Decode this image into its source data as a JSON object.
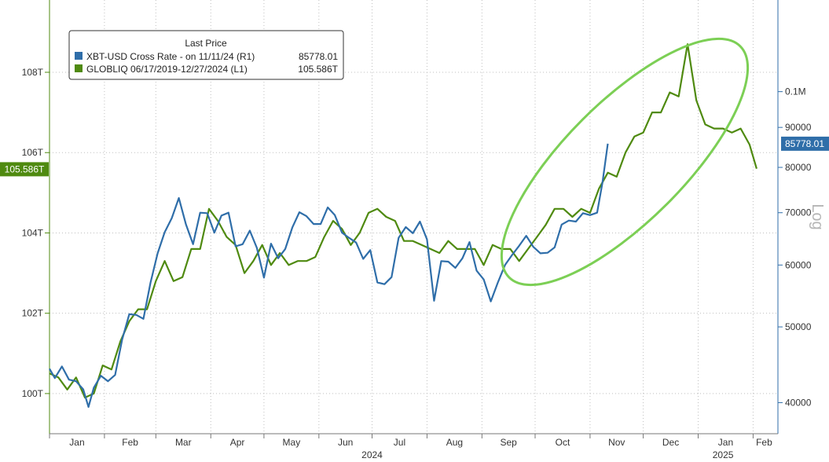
{
  "chart_data": {
    "type": "line",
    "legend": {
      "title": "Last Price",
      "placement": "top-left",
      "entries": [
        {
          "label": "XBT-USD Cross Rate -  on 11/11/24  (R1)",
          "value": "85778.01",
          "color": "#2f6ea9"
        },
        {
          "label": "GLOBLIQ 06/17/2019-12/27/2024  (L1)",
          "value": "105.586T",
          "color": "#4f8a10"
        }
      ]
    },
    "x_axis": {
      "months": [
        {
          "label": "Jan",
          "date": "2024-01-01"
        },
        {
          "label": "Feb",
          "date": "2024-02-01"
        },
        {
          "label": "Mar",
          "date": "2024-03-01"
        },
        {
          "label": "Apr",
          "date": "2024-04-01"
        },
        {
          "label": "May",
          "date": "2024-05-01"
        },
        {
          "label": "Jun",
          "date": "2024-06-01"
        },
        {
          "label": "Jul",
          "date": "2024-07-01"
        },
        {
          "label": "Aug",
          "date": "2024-08-01"
        },
        {
          "label": "Sep",
          "date": "2024-09-01"
        },
        {
          "label": "Oct",
          "date": "2024-10-01"
        },
        {
          "label": "Nov",
          "date": "2024-11-01"
        },
        {
          "label": "Dec",
          "date": "2024-12-01"
        },
        {
          "label": "Jan",
          "date": "2025-01-01"
        },
        {
          "label": "Feb",
          "date": "2025-02-01"
        }
      ],
      "years": [
        {
          "label": "2024",
          "date": "2024-07-01"
        },
        {
          "label": "2025",
          "date": "2025-01-15"
        }
      ],
      "range": [
        "2024-01-01",
        "2025-02-15"
      ]
    },
    "y_left": {
      "ticks": [
        {
          "label": "100T",
          "value": 100
        },
        {
          "label": "102T",
          "value": 102
        },
        {
          "label": "104T",
          "value": 104
        },
        {
          "label": "106T",
          "value": 106
        },
        {
          "label": "108T",
          "value": 108
        }
      ],
      "range": [
        99,
        109.8
      ],
      "last_value_label": "105.586T",
      "last_value": 105.586
    },
    "y_right": {
      "scale": "log",
      "axis_label": "Log",
      "ticks": [
        {
          "label": "40000",
          "value": 40000
        },
        {
          "label": "50000",
          "value": 50000
        },
        {
          "label": "60000",
          "value": 60000
        },
        {
          "label": "70000",
          "value": 70000
        },
        {
          "label": "80000",
          "value": 80000
        },
        {
          "label": "90000",
          "value": 90000
        },
        {
          "label": "0.1M",
          "value": 100000
        }
      ],
      "range": [
        36500,
        131000
      ],
      "last_value_label": "85778.01",
      "last_value": 85778.01
    },
    "grid": true,
    "series": [
      {
        "name": "GLOBLIQ 06/17/2019-12/27/2024",
        "axis": "left",
        "color": "#4f8a10",
        "points": [
          [
            "2024-01-01",
            100.5
          ],
          [
            "2024-01-06",
            100.4
          ],
          [
            "2024-01-11",
            100.1
          ],
          [
            "2024-01-16",
            100.4
          ],
          [
            "2024-01-21",
            99.9
          ],
          [
            "2024-01-26",
            100.0
          ],
          [
            "2024-01-31",
            100.7
          ],
          [
            "2024-02-05",
            100.6
          ],
          [
            "2024-02-10",
            101.3
          ],
          [
            "2024-02-15",
            101.8
          ],
          [
            "2024-02-20",
            102.1
          ],
          [
            "2024-02-25",
            102.1
          ],
          [
            "2024-03-01",
            102.8
          ],
          [
            "2024-03-06",
            103.3
          ],
          [
            "2024-03-11",
            102.8
          ],
          [
            "2024-03-16",
            102.9
          ],
          [
            "2024-03-21",
            103.6
          ],
          [
            "2024-03-26",
            103.6
          ],
          [
            "2024-03-31",
            104.6
          ],
          [
            "2024-04-05",
            104.3
          ],
          [
            "2024-04-10",
            103.9
          ],
          [
            "2024-04-15",
            103.7
          ],
          [
            "2024-04-20",
            103.0
          ],
          [
            "2024-04-25",
            103.3
          ],
          [
            "2024-04-30",
            103.7
          ],
          [
            "2024-05-05",
            103.2
          ],
          [
            "2024-05-10",
            103.5
          ],
          [
            "2024-05-15",
            103.2
          ],
          [
            "2024-05-20",
            103.3
          ],
          [
            "2024-05-25",
            103.3
          ],
          [
            "2024-05-30",
            103.4
          ],
          [
            "2024-06-04",
            103.9
          ],
          [
            "2024-06-09",
            104.3
          ],
          [
            "2024-06-14",
            104.1
          ],
          [
            "2024-06-19",
            103.7
          ],
          [
            "2024-06-24",
            104.0
          ],
          [
            "2024-06-29",
            104.5
          ],
          [
            "2024-07-04",
            104.6
          ],
          [
            "2024-07-09",
            104.4
          ],
          [
            "2024-07-14",
            104.3
          ],
          [
            "2024-07-19",
            103.8
          ],
          [
            "2024-07-24",
            103.8
          ],
          [
            "2024-07-29",
            103.7
          ],
          [
            "2024-08-03",
            103.6
          ],
          [
            "2024-08-08",
            103.5
          ],
          [
            "2024-08-13",
            103.8
          ],
          [
            "2024-08-18",
            103.6
          ],
          [
            "2024-08-23",
            103.6
          ],
          [
            "2024-08-28",
            103.6
          ],
          [
            "2024-09-02",
            103.2
          ],
          [
            "2024-09-07",
            103.7
          ],
          [
            "2024-09-12",
            103.6
          ],
          [
            "2024-09-17",
            103.6
          ],
          [
            "2024-09-22",
            103.3
          ],
          [
            "2024-09-27",
            103.6
          ],
          [
            "2024-10-02",
            103.9
          ],
          [
            "2024-10-07",
            104.2
          ],
          [
            "2024-10-12",
            104.6
          ],
          [
            "2024-10-17",
            104.6
          ],
          [
            "2024-10-22",
            104.4
          ],
          [
            "2024-10-27",
            104.6
          ],
          [
            "2024-11-01",
            104.5
          ],
          [
            "2024-11-06",
            105.1
          ],
          [
            "2024-11-11",
            105.5
          ],
          [
            "2024-11-16",
            105.4
          ],
          [
            "2024-11-21",
            106.0
          ],
          [
            "2024-11-26",
            106.4
          ],
          [
            "2024-12-01",
            106.5
          ],
          [
            "2024-12-06",
            107.0
          ],
          [
            "2024-12-11",
            107.0
          ],
          [
            "2024-12-16",
            107.5
          ],
          [
            "2024-12-21",
            107.4
          ],
          [
            "2024-12-26",
            108.7
          ],
          [
            "2024-12-31",
            107.3
          ],
          [
            "2025-01-05",
            106.7
          ],
          [
            "2025-01-10",
            106.6
          ],
          [
            "2025-01-15",
            106.6
          ],
          [
            "2025-01-20",
            106.5
          ],
          [
            "2025-01-25",
            106.6
          ],
          [
            "2025-01-30",
            106.2
          ],
          [
            "2025-02-03",
            105.6
          ]
        ]
      },
      {
        "name": "XBT-USD Cross Rate -  on 11/11/24",
        "axis": "right",
        "color": "#2f6ea9",
        "points": [
          [
            "2024-01-01",
            44200
          ],
          [
            "2024-01-04",
            43000
          ],
          [
            "2024-01-08",
            44500
          ],
          [
            "2024-01-12",
            42800
          ],
          [
            "2024-01-16",
            42600
          ],
          [
            "2024-01-20",
            41600
          ],
          [
            "2024-01-23",
            39500
          ],
          [
            "2024-01-26",
            41800
          ],
          [
            "2024-01-30",
            43300
          ],
          [
            "2024-02-03",
            42600
          ],
          [
            "2024-02-07",
            43400
          ],
          [
            "2024-02-11",
            48200
          ],
          [
            "2024-02-15",
            51900
          ],
          [
            "2024-02-19",
            51800
          ],
          [
            "2024-02-23",
            51200
          ],
          [
            "2024-02-27",
            57000
          ],
          [
            "2024-03-02",
            62100
          ],
          [
            "2024-03-06",
            66100
          ],
          [
            "2024-03-10",
            68900
          ],
          [
            "2024-03-14",
            73100
          ],
          [
            "2024-03-18",
            67600
          ],
          [
            "2024-03-22",
            63800
          ],
          [
            "2024-03-26",
            70000
          ],
          [
            "2024-03-30",
            69900
          ],
          [
            "2024-04-03",
            66000
          ],
          [
            "2024-04-07",
            69400
          ],
          [
            "2024-04-11",
            70000
          ],
          [
            "2024-04-15",
            63400
          ],
          [
            "2024-04-19",
            63800
          ],
          [
            "2024-04-23",
            66400
          ],
          [
            "2024-04-27",
            63100
          ],
          [
            "2024-05-01",
            57800
          ],
          [
            "2024-05-05",
            63900
          ],
          [
            "2024-05-09",
            61200
          ],
          [
            "2024-05-13",
            62900
          ],
          [
            "2024-05-17",
            67000
          ],
          [
            "2024-05-21",
            70100
          ],
          [
            "2024-05-25",
            69300
          ],
          [
            "2024-05-29",
            67700
          ],
          [
            "2024-06-02",
            67700
          ],
          [
            "2024-06-06",
            71100
          ],
          [
            "2024-06-10",
            69500
          ],
          [
            "2024-06-14",
            66000
          ],
          [
            "2024-06-18",
            65000
          ],
          [
            "2024-06-22",
            64100
          ],
          [
            "2024-06-26",
            61100
          ],
          [
            "2024-06-30",
            62700
          ],
          [
            "2024-07-04",
            57000
          ],
          [
            "2024-07-08",
            56700
          ],
          [
            "2024-07-12",
            57900
          ],
          [
            "2024-07-16",
            65000
          ],
          [
            "2024-07-20",
            67100
          ],
          [
            "2024-07-24",
            65900
          ],
          [
            "2024-07-28",
            68200
          ],
          [
            "2024-08-01",
            64700
          ],
          [
            "2024-08-05",
            54000
          ],
          [
            "2024-08-09",
            60700
          ],
          [
            "2024-08-13",
            60600
          ],
          [
            "2024-08-17",
            59500
          ],
          [
            "2024-08-21",
            61200
          ],
          [
            "2024-08-25",
            64200
          ],
          [
            "2024-08-29",
            59000
          ],
          [
            "2024-09-02",
            57500
          ],
          [
            "2024-09-06",
            53900
          ],
          [
            "2024-09-10",
            57000
          ],
          [
            "2024-09-14",
            60000
          ],
          [
            "2024-09-18",
            61800
          ],
          [
            "2024-09-22",
            63500
          ],
          [
            "2024-09-26",
            65400
          ],
          [
            "2024-09-30",
            63300
          ],
          [
            "2024-10-04",
            62100
          ],
          [
            "2024-10-08",
            62200
          ],
          [
            "2024-10-12",
            63200
          ],
          [
            "2024-10-16",
            67600
          ],
          [
            "2024-10-20",
            68400
          ],
          [
            "2024-10-24",
            68200
          ],
          [
            "2024-10-28",
            69900
          ],
          [
            "2024-11-01",
            69500
          ],
          [
            "2024-11-05",
            70000
          ],
          [
            "2024-11-08",
            76500
          ],
          [
            "2024-11-11",
            85778.01
          ]
        ]
      }
    ],
    "annotation": {
      "shape": "ellipse",
      "color": "#7ccf55"
    }
  }
}
